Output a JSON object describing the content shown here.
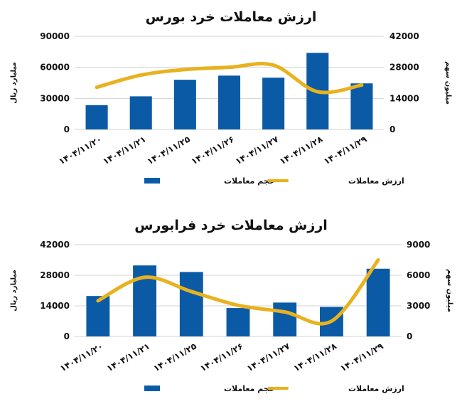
{
  "colors": {
    "bar": "#0b5aa6",
    "line": "#e8b21f",
    "grid": "#d3d3d3"
  },
  "chart_data": [
    {
      "type": "bar",
      "title": "ارزش معاملات خرد بورس",
      "categories": [
        "۱۴۰۴/۱۱/۲۰",
        "۱۴۰۴/۱۱/۲۱",
        "۱۴۰۴/۱۱/۲۵",
        "۱۴۰۴/۱۱/۲۶",
        "۱۴۰۴/۱۱/۲۷",
        "۱۴۰۴/۱۱/۲۸",
        "۱۴۰۴/۱۱/۲۹"
      ],
      "ylabel_left": "میلیارد ریال",
      "ylabel_right": "میلیون سهم",
      "ylim_left": [
        0,
        90000
      ],
      "ylim_right": [
        0,
        42000
      ],
      "yticks_left": [
        "0",
        "30000",
        "60000",
        "90000"
      ],
      "yticks_right": [
        "0",
        "14000",
        "28000",
        "42000"
      ],
      "grid": true,
      "legend_position": "bottom",
      "series": [
        {
          "name": "حجم معاملات",
          "kind": "bar",
          "axis": "left",
          "values": [
            23500,
            32000,
            48000,
            52000,
            50000,
            74000,
            44500
          ]
        },
        {
          "name": "ارزش معاملات",
          "kind": "line",
          "axis": "right",
          "values": [
            19000,
            24500,
            27000,
            28000,
            29000,
            17000,
            20000
          ]
        }
      ]
    },
    {
      "type": "bar",
      "title": "ارزش معاملات خرد فرابورس",
      "categories": [
        "۱۴۰۴/۱۱/۲۰",
        "۱۴۰۴/۱۱/۲۱",
        "۱۴۰۴/۱۱/۲۵",
        "۱۴۰۴/۱۱/۲۶",
        "۱۴۰۴/۱۱/۲۷",
        "۱۴۰۴/۱۱/۲۸",
        "۱۴۰۴/۱۱/۲۹"
      ],
      "ylabel_left": "میلیارد ریال",
      "ylabel_right": "میلیون سهم",
      "ylim_left": [
        0,
        42000
      ],
      "ylim_right": [
        0,
        9000
      ],
      "yticks_left": [
        "0",
        "14000",
        "28000",
        "42000"
      ],
      "yticks_right": [
        "0",
        "3000",
        "6000",
        "9000"
      ],
      "grid": true,
      "legend_position": "bottom",
      "series": [
        {
          "name": "حجم معاملات",
          "kind": "bar",
          "axis": "left",
          "values": [
            18500,
            32500,
            29500,
            13000,
            15500,
            13500,
            31000
          ]
        },
        {
          "name": "ارزش معاملات",
          "kind": "line",
          "axis": "right",
          "values": [
            3500,
            5800,
            4400,
            3050,
            2400,
            1500,
            7500
          ]
        }
      ]
    }
  ]
}
